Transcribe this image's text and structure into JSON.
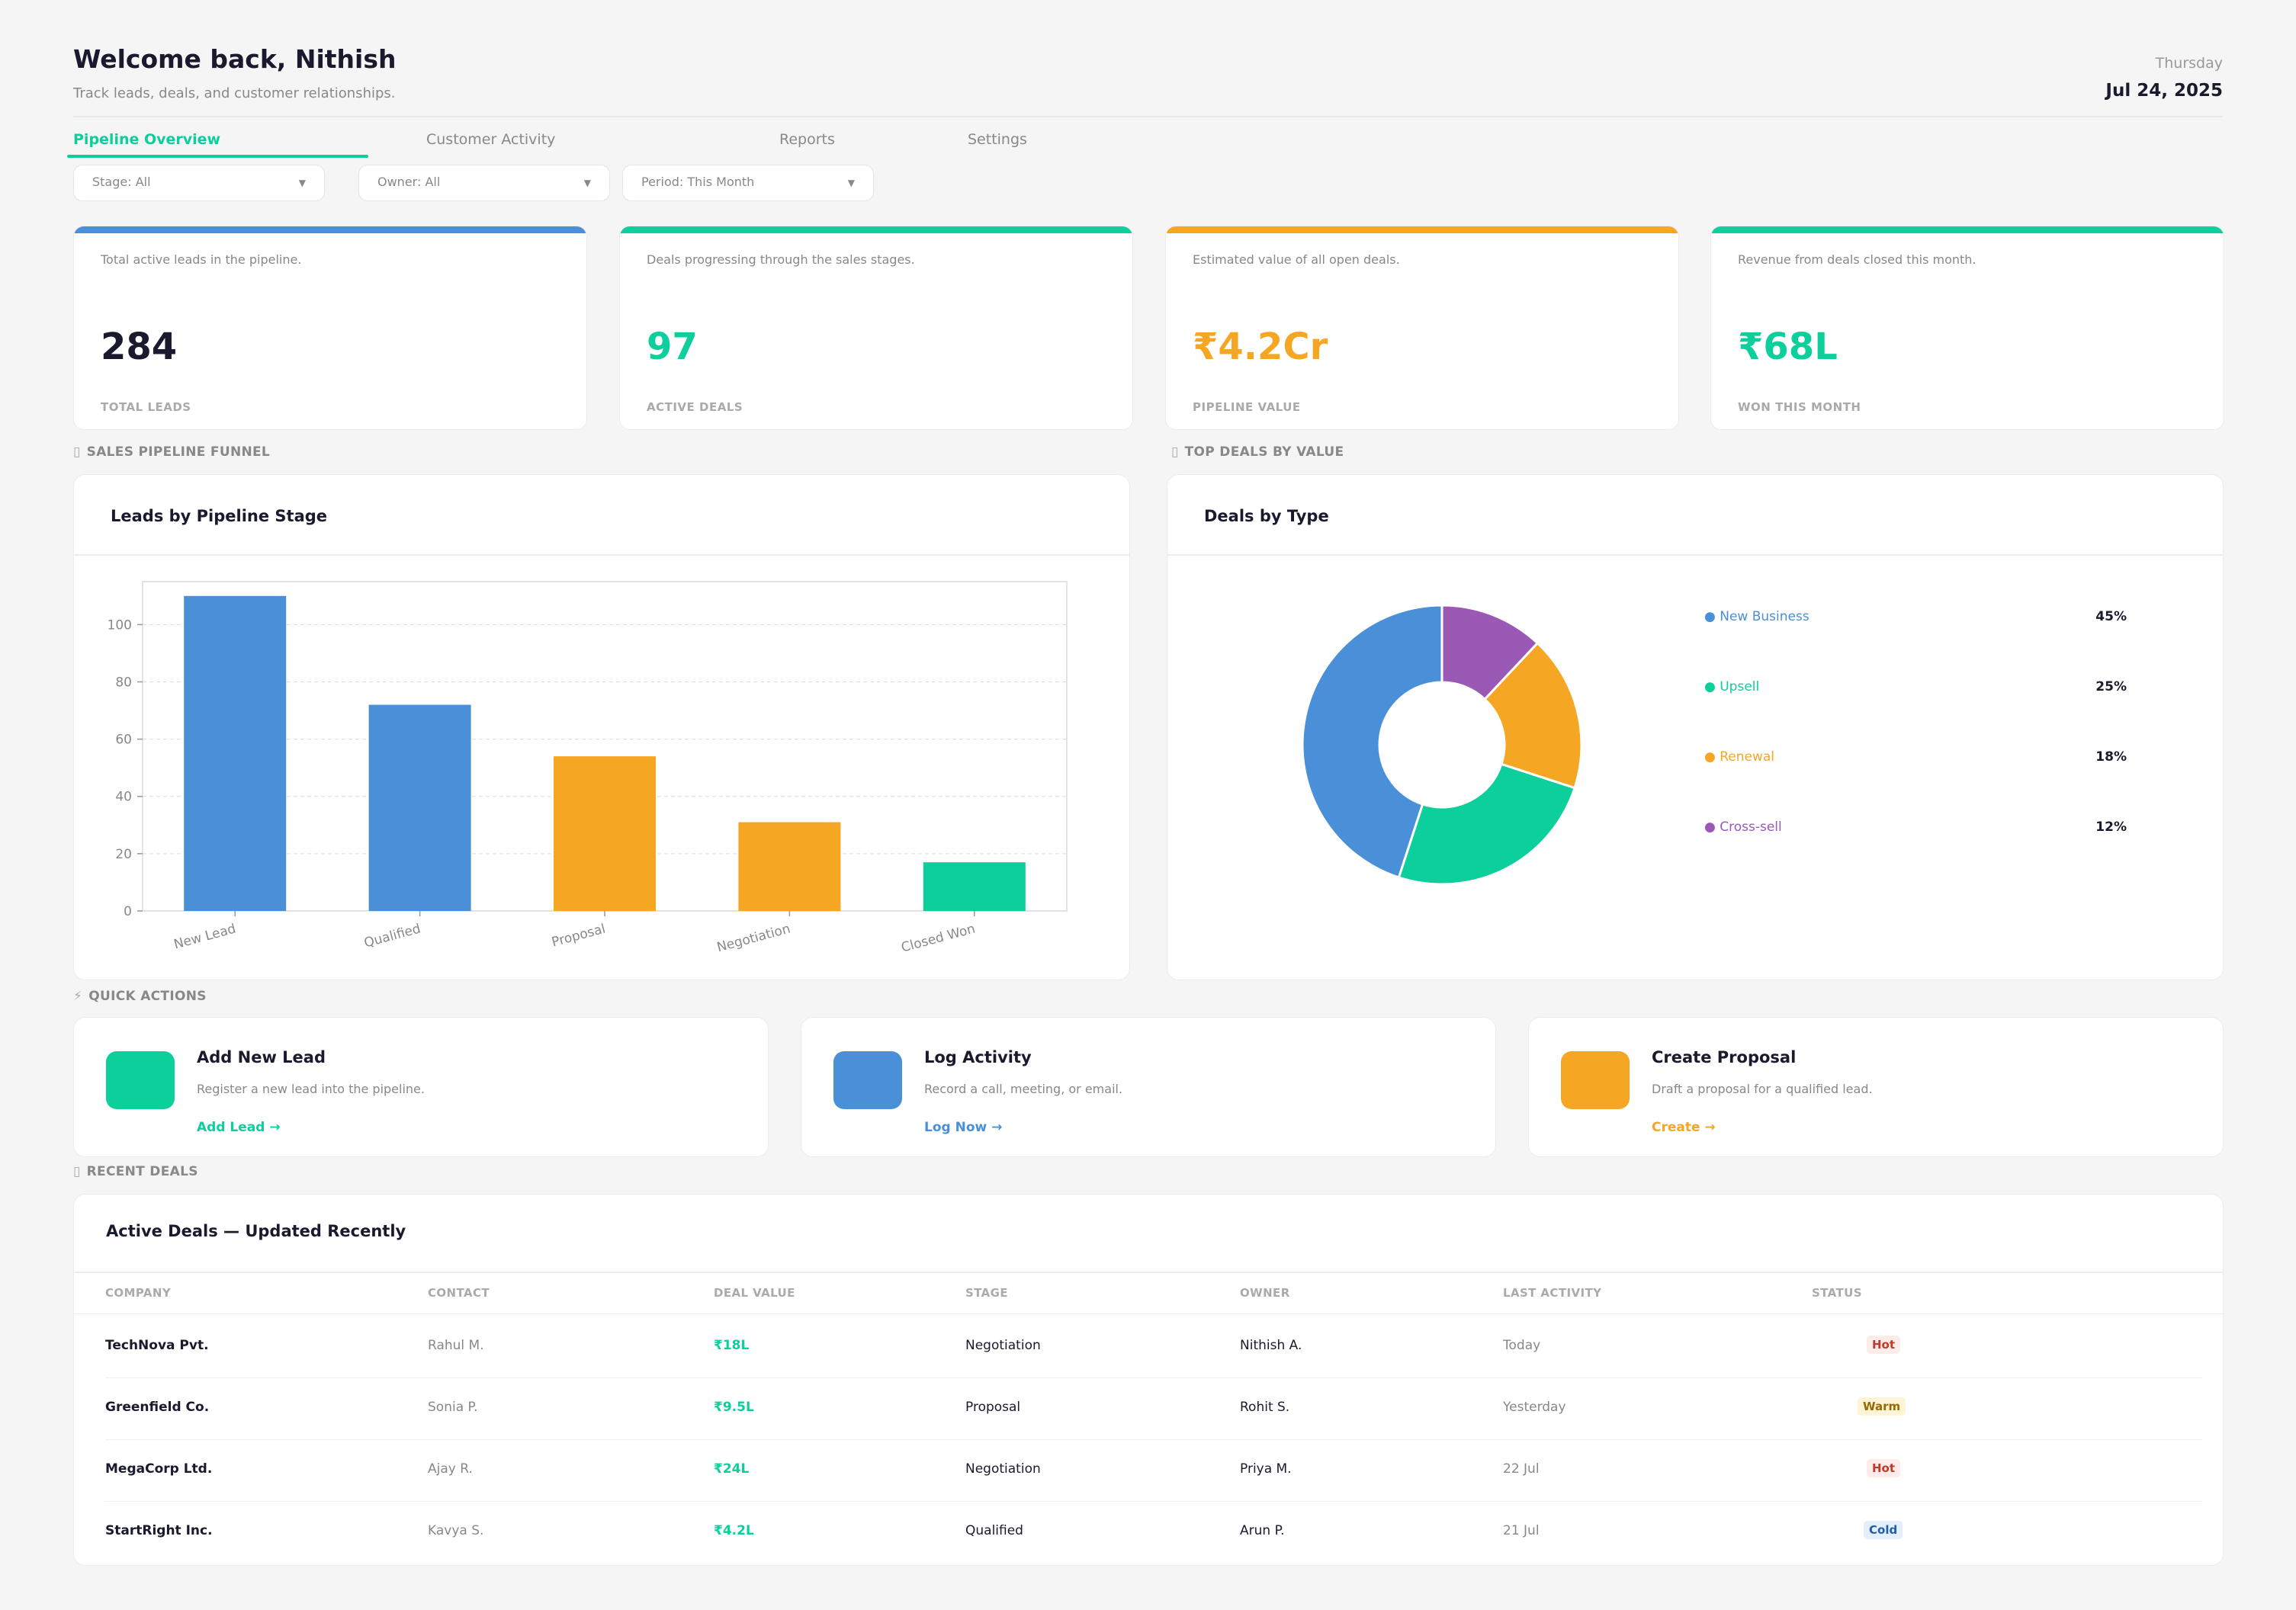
{
  "header": {
    "title": "Welcome back, Nithish",
    "subtitle": "Track leads, deals, and customer relationships.",
    "day_of_week": "Thursday",
    "date": "Jul 24, 2025"
  },
  "tabs": [
    {
      "label": "Pipeline Overview",
      "active": true
    },
    {
      "label": "Customer Activity",
      "active": false
    },
    {
      "label": "Reports",
      "active": false
    },
    {
      "label": "Settings",
      "active": false
    }
  ],
  "filters": [
    {
      "label": "Stage: All"
    },
    {
      "label": "Owner: All"
    },
    {
      "label": "Period: This Month"
    }
  ],
  "kpis": [
    {
      "description": "Total active leads in the pipeline.",
      "value": "284",
      "label": "TOTAL LEADS",
      "color": "#4a90d9",
      "value_color": "#1a1a2e"
    },
    {
      "description": "Deals progressing through the sales stages.",
      "value": "97",
      "label": "ACTIVE DEALS",
      "color": "#0ccf9b",
      "value_color": "#0ccf9b"
    },
    {
      "description": "Estimated value of all open deals.",
      "value": "₹4.2Cr",
      "label": "PIPELINE VALUE",
      "color": "#f5a623",
      "value_color": "#f5a623"
    },
    {
      "description": "Revenue from deals closed this month.",
      "value": "₹68L",
      "label": "WON THIS MONTH",
      "color": "#0ccf9b",
      "value_color": "#0ccf9b"
    }
  ],
  "sections": {
    "funnel": "SALES PIPELINE FUNNEL",
    "top_deals": "TOP DEALS BY VALUE",
    "quick_actions": "QUICK ACTIONS",
    "recent_deals": "RECENT DEALS"
  },
  "bar_panel": {
    "title": "Leads by Pipeline Stage"
  },
  "donut_panel": {
    "title": "Deals by Type"
  },
  "chart_data": [
    {
      "type": "bar",
      "title": "Leads by Pipeline Stage",
      "categories": [
        "New Lead",
        "Qualified",
        "Proposal",
        "Negotiation",
        "Closed Won"
      ],
      "values": [
        110,
        72,
        54,
        31,
        17
      ],
      "colors": [
        "#4a90d9",
        "#4a90d9",
        "#f5a623",
        "#f5a623",
        "#0ccf9b"
      ],
      "ylim": [
        0,
        115
      ],
      "yticks": [
        0,
        20,
        40,
        60,
        80,
        100
      ],
      "grid": true
    },
    {
      "type": "pie",
      "title": "Deals by Type",
      "labels": [
        "New Business",
        "Upsell",
        "Renewal",
        "Cross-sell"
      ],
      "values": [
        45,
        25,
        18,
        12
      ],
      "value_labels": [
        "45%",
        "25%",
        "18%",
        "12%"
      ],
      "colors": [
        "#4a90d9",
        "#0ccf9b",
        "#f5a623",
        "#9b59b6"
      ],
      "donut": true,
      "legend": "right"
    }
  ],
  "quick_actions": [
    {
      "title": "Add New Lead",
      "description": "Register a new lead into the pipeline.",
      "link": "Add Lead →",
      "color": "#0ccf9b"
    },
    {
      "title": "Log Activity",
      "description": "Record a call, meeting, or email.",
      "link": "Log Now →",
      "color": "#4a90d9"
    },
    {
      "title": "Create Proposal",
      "description": "Draft a proposal for a qualified lead.",
      "link": "Create →",
      "color": "#f5a623"
    }
  ],
  "table": {
    "title": "Active Deals — Updated Recently",
    "columns": [
      "COMPANY",
      "CONTACT",
      "DEAL VALUE",
      "STAGE",
      "OWNER",
      "LAST ACTIVITY",
      "STATUS"
    ],
    "rows": [
      {
        "company": "TechNova Pvt.",
        "contact": "Rahul M.",
        "value": "₹18L",
        "stage": "Negotiation",
        "owner": "Nithish A.",
        "last": "Today",
        "status": "Hot"
      },
      {
        "company": "Greenfield Co.",
        "contact": "Sonia P.",
        "value": "₹9.5L",
        "stage": "Proposal",
        "owner": "Rohit S.",
        "last": "Yesterday",
        "status": "Warm"
      },
      {
        "company": "MegaCorp Ltd.",
        "contact": "Ajay R.",
        "value": "₹24L",
        "stage": "Negotiation",
        "owner": "Priya M.",
        "last": "22 Jul",
        "status": "Hot"
      },
      {
        "company": "StartRight Inc.",
        "contact": "Kavya S.",
        "value": "₹4.2L",
        "stage": "Qualified",
        "owner": "Arun P.",
        "last": "21 Jul",
        "status": "Cold"
      }
    ],
    "status_colors": {
      "Hot": {
        "fg": "#c0392b",
        "bg": "#fdecea"
      },
      "Warm": {
        "fg": "#9a6a00",
        "bg": "#fff4d6"
      },
      "Cold": {
        "fg": "#1f5fa8",
        "bg": "#e3effb"
      }
    }
  }
}
